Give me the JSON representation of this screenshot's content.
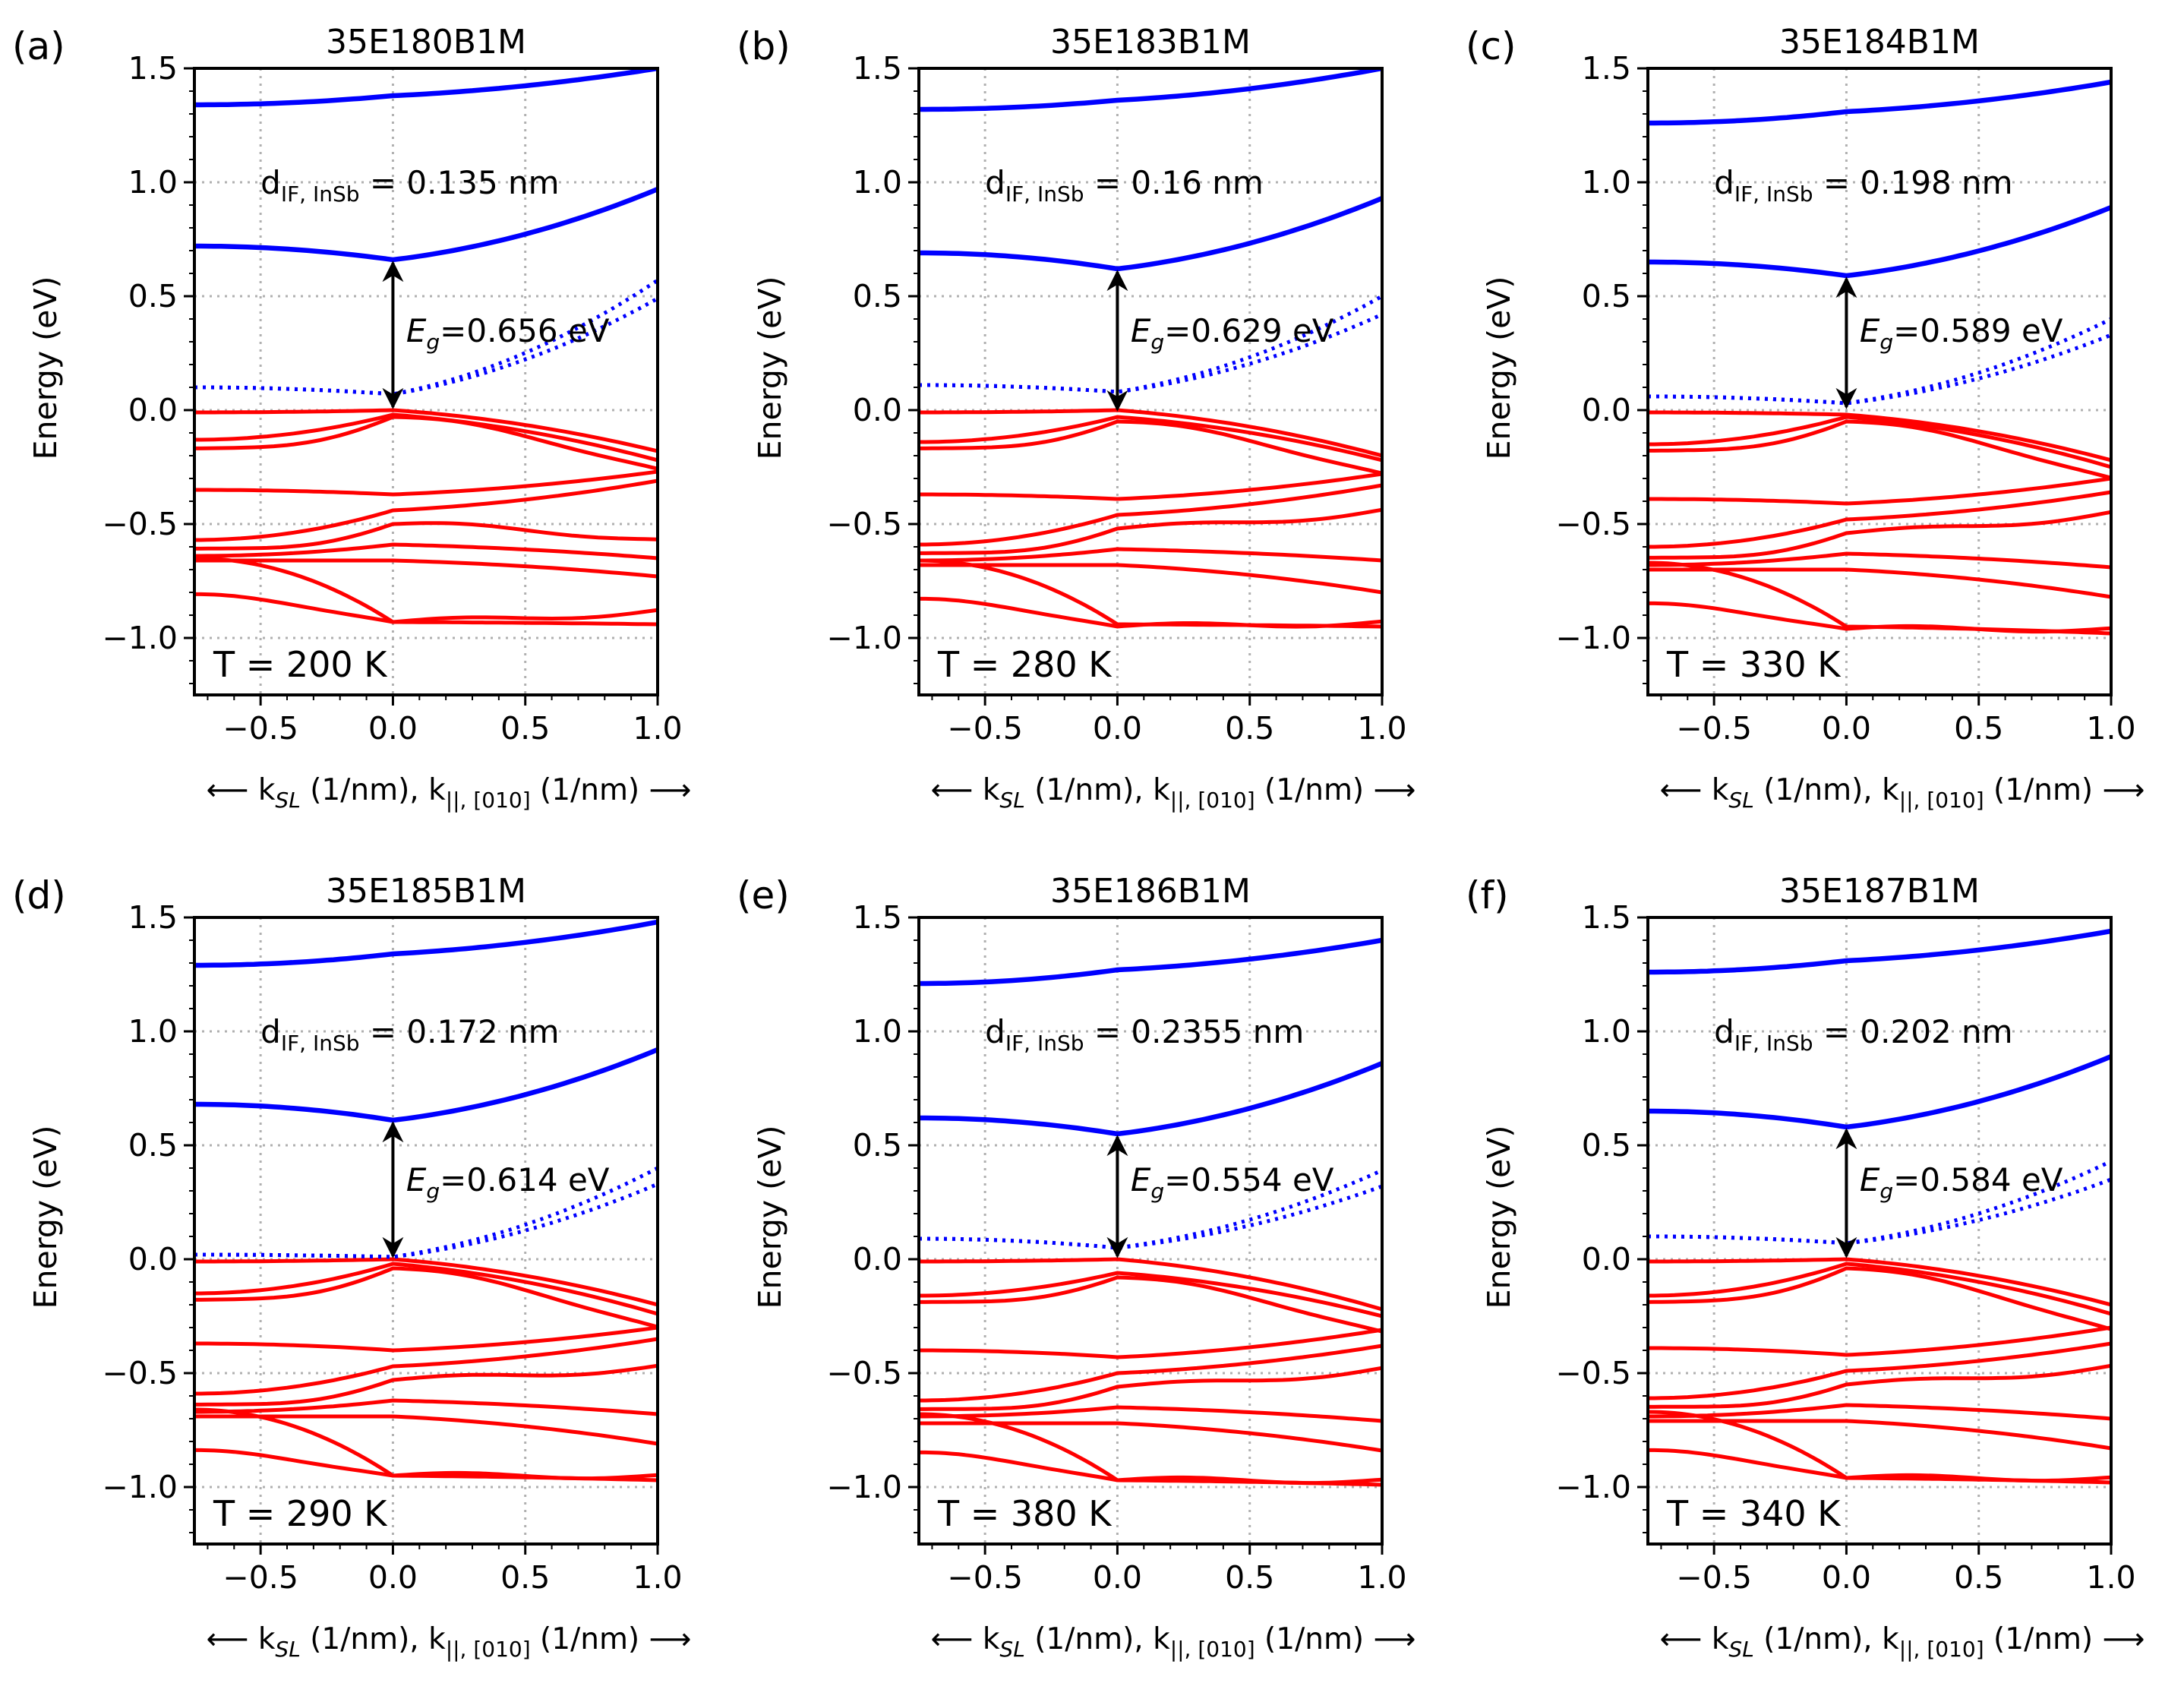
{
  "figure": {
    "y_axis_label": "Energy (eV)",
    "x_axis_label": {
      "left_arrow": "⟵",
      "k_sl": "k",
      "k_sl_sub": "SL",
      "k_sl_unit": " (1/nm), ",
      "k_par": "k",
      "k_par_sub": "||, [010]",
      "k_par_unit": " (1/nm) ",
      "right_arrow": "⟶"
    },
    "colors": {
      "conduction": "#0000ff",
      "valence": "#ff0000",
      "grid": "#b0b0b0",
      "arrow": "#000000"
    }
  },
  "chart_data": [
    {
      "letter": "(a)",
      "type": "line",
      "title": "35E180B1M",
      "d_prefix": "d",
      "d_sub": "IF, InSb",
      "d_value": " = 0.135 nm",
      "eg_sym": "E",
      "eg_sub": "g",
      "eg_value": "=0.656 eV",
      "eg": 0.656,
      "cbm": 0.66,
      "vbm": 0.0,
      "temperature": "T = 200 K",
      "xlim": [
        -0.75,
        1.0
      ],
      "ylim": [
        -1.25,
        1.5
      ],
      "xticks": [
        -0.5,
        0.0,
        0.5,
        1.0
      ],
      "xtick_labels": [
        "−0.5",
        "0.0",
        "0.5",
        "1.0"
      ],
      "yticks": [
        -1.0,
        -0.5,
        0.0,
        0.5,
        1.0,
        1.5
      ],
      "ytick_labels": [
        "−1.0",
        "−0.5",
        "0.0",
        "0.5",
        "1.0",
        "1.5"
      ],
      "cb1": [
        0.72,
        0.66,
        0.97
      ],
      "cb2": [
        1.34,
        1.38,
        1.5
      ],
      "dotted": [
        0.1,
        0.07,
        0.57,
        0.49
      ],
      "vb": [
        [
          -0.01,
          0.0,
          -0.18
        ],
        [
          -0.13,
          -0.02,
          -0.22
        ],
        [
          -0.18,
          -0.03,
          -0.26
        ],
        [
          -0.35,
          -0.37,
          -0.27
        ],
        [
          -0.57,
          -0.44,
          -0.31
        ],
        [
          -0.62,
          -0.5,
          -0.57
        ],
        [
          -0.64,
          -0.59,
          -0.65
        ],
        [
          -0.66,
          -0.66,
          -0.73
        ],
        [
          -0.82,
          -0.93,
          -0.88
        ],
        [
          -0.65,
          -0.93,
          -0.94
        ]
      ]
    },
    {
      "letter": "(b)",
      "type": "line",
      "title": "35E183B1M",
      "d_prefix": "d",
      "d_sub": "IF, InSb",
      "d_value": " = 0.16 nm",
      "eg_sym": "E",
      "eg_sub": "g",
      "eg_value": "=0.629 eV",
      "eg": 0.629,
      "cbm": 0.62,
      "vbm": -0.01,
      "temperature": "T = 280 K",
      "xlim": [
        -0.75,
        1.0
      ],
      "ylim": [
        -1.25,
        1.5
      ],
      "xticks": [
        -0.5,
        0.0,
        0.5,
        1.0
      ],
      "xtick_labels": [
        "−0.5",
        "0.0",
        "0.5",
        "1.0"
      ],
      "yticks": [
        -1.0,
        -0.5,
        0.0,
        0.5,
        1.0,
        1.5
      ],
      "ytick_labels": [
        "−1.0",
        "−0.5",
        "0.0",
        "0.5",
        "1.0",
        "1.5"
      ],
      "cb1": [
        0.69,
        0.62,
        0.93
      ],
      "cb2": [
        1.32,
        1.36,
        1.5
      ],
      "dotted": [
        0.11,
        0.08,
        0.5,
        0.42
      ],
      "vb": [
        [
          -0.01,
          0.0,
          -0.2
        ],
        [
          -0.14,
          -0.03,
          -0.22
        ],
        [
          -0.18,
          -0.05,
          -0.28
        ],
        [
          -0.37,
          -0.39,
          -0.28
        ],
        [
          -0.59,
          -0.46,
          -0.33
        ],
        [
          -0.64,
          -0.52,
          -0.44
        ],
        [
          -0.66,
          -0.61,
          -0.66
        ],
        [
          -0.68,
          -0.68,
          -0.8
        ],
        [
          -0.84,
          -0.95,
          -0.93
        ],
        [
          -0.66,
          -0.94,
          -0.95
        ]
      ]
    },
    {
      "letter": "(c)",
      "type": "line",
      "title": "35E184B1M",
      "d_prefix": "d",
      "d_sub": "IF, InSb",
      "d_value": " = 0.198 nm",
      "eg_sym": "E",
      "eg_sub": "g",
      "eg_value": "=0.589 eV",
      "eg": 0.589,
      "cbm": 0.59,
      "vbm": 0.0,
      "temperature": "T = 330 K",
      "xlim": [
        -0.75,
        1.0
      ],
      "ylim": [
        -1.25,
        1.5
      ],
      "xticks": [
        -0.5,
        0.0,
        0.5,
        1.0
      ],
      "xtick_labels": [
        "−0.5",
        "0.0",
        "0.5",
        "1.0"
      ],
      "yticks": [
        -1.0,
        -0.5,
        0.0,
        0.5,
        1.0,
        1.5
      ],
      "ytick_labels": [
        "−1.0",
        "−0.5",
        "0.0",
        "0.5",
        "1.0",
        "1.5"
      ],
      "cb1": [
        0.65,
        0.59,
        0.89
      ],
      "cb2": [
        1.26,
        1.31,
        1.44
      ],
      "dotted": [
        0.06,
        0.03,
        0.4,
        0.33
      ],
      "vb": [
        [
          -0.01,
          -0.02,
          -0.22
        ],
        [
          -0.15,
          -0.03,
          -0.25
        ],
        [
          -0.19,
          -0.05,
          -0.3
        ],
        [
          -0.39,
          -0.41,
          -0.3
        ],
        [
          -0.6,
          -0.48,
          -0.36
        ],
        [
          -0.66,
          -0.54,
          -0.45
        ],
        [
          -0.68,
          -0.63,
          -0.69
        ],
        [
          -0.7,
          -0.7,
          -0.82
        ],
        [
          -0.86,
          -0.96,
          -0.96
        ],
        [
          -0.67,
          -0.95,
          -0.98
        ]
      ]
    },
    {
      "letter": "(d)",
      "type": "line",
      "title": "35E185B1M",
      "d_prefix": "d",
      "d_sub": "IF, InSb",
      "d_value": " = 0.172 nm",
      "eg_sym": "E",
      "eg_sub": "g",
      "eg_value": "=0.614 eV",
      "eg": 0.614,
      "cbm": 0.61,
      "vbm": 0.0,
      "temperature": "T = 290 K",
      "xlim": [
        -0.75,
        1.0
      ],
      "ylim": [
        -1.25,
        1.5
      ],
      "xticks": [
        -0.5,
        0.0,
        0.5,
        1.0
      ],
      "xtick_labels": [
        "−0.5",
        "0.0",
        "0.5",
        "1.0"
      ],
      "yticks": [
        -1.0,
        -0.5,
        0.0,
        0.5,
        1.0,
        1.5
      ],
      "ytick_labels": [
        "−1.0",
        "−0.5",
        "0.0",
        "0.5",
        "1.0",
        "1.5"
      ],
      "cb1": [
        0.68,
        0.61,
        0.92
      ],
      "cb2": [
        1.29,
        1.34,
        1.48
      ],
      "dotted": [
        0.02,
        0.01,
        0.4,
        0.33
      ],
      "vb": [
        [
          -0.01,
          0.0,
          -0.2
        ],
        [
          -0.15,
          -0.02,
          -0.24
        ],
        [
          -0.19,
          -0.04,
          -0.3
        ],
        [
          -0.37,
          -0.4,
          -0.3
        ],
        [
          -0.59,
          -0.47,
          -0.35
        ],
        [
          -0.65,
          -0.53,
          -0.47
        ],
        [
          -0.67,
          -0.62,
          -0.68
        ],
        [
          -0.69,
          -0.69,
          -0.81
        ],
        [
          -0.85,
          -0.95,
          -0.95
        ],
        [
          -0.66,
          -0.95,
          -0.97
        ]
      ]
    },
    {
      "letter": "(e)",
      "type": "line",
      "title": "35E186B1M",
      "d_prefix": "d",
      "d_sub": "IF, InSb",
      "d_value": " = 0.2355 nm",
      "eg_sym": "E",
      "eg_sub": "g",
      "eg_value": "=0.554 eV",
      "eg": 0.554,
      "cbm": 0.55,
      "vbm": 0.0,
      "temperature": "T = 380 K",
      "xlim": [
        -0.75,
        1.0
      ],
      "ylim": [
        -1.25,
        1.5
      ],
      "xticks": [
        -0.5,
        0.0,
        0.5,
        1.0
      ],
      "xtick_labels": [
        "−0.5",
        "0.0",
        "0.5",
        "1.0"
      ],
      "yticks": [
        -1.0,
        -0.5,
        0.0,
        0.5,
        1.0,
        1.5
      ],
      "ytick_labels": [
        "−1.0",
        "−0.5",
        "0.0",
        "0.5",
        "1.0",
        "1.5"
      ],
      "cb1": [
        0.62,
        0.55,
        0.86
      ],
      "cb2": [
        1.21,
        1.27,
        1.4
      ],
      "dotted": [
        0.09,
        0.05,
        0.39,
        0.32
      ],
      "vb": [
        [
          -0.01,
          0.0,
          -0.22
        ],
        [
          -0.16,
          -0.06,
          -0.25
        ],
        [
          -0.2,
          -0.08,
          -0.32
        ],
        [
          -0.4,
          -0.43,
          -0.31
        ],
        [
          -0.62,
          -0.5,
          -0.38
        ],
        [
          -0.67,
          -0.56,
          -0.48
        ],
        [
          -0.69,
          -0.65,
          -0.71
        ],
        [
          -0.72,
          -0.72,
          -0.84
        ],
        [
          -0.86,
          -0.97,
          -0.97
        ],
        [
          -0.68,
          -0.97,
          -0.99
        ]
      ]
    },
    {
      "letter": "(f)",
      "type": "line",
      "title": "35E187B1M",
      "d_prefix": "d",
      "d_sub": "IF, InSb",
      "d_value": " = 0.202 nm",
      "eg_sym": "E",
      "eg_sub": "g",
      "eg_value": "=0.584 eV",
      "eg": 0.584,
      "cbm": 0.58,
      "vbm": 0.0,
      "temperature": "T = 340 K",
      "xlim": [
        -0.75,
        1.0
      ],
      "ylim": [
        -1.25,
        1.5
      ],
      "xticks": [
        -0.5,
        0.0,
        0.5,
        1.0
      ],
      "xtick_labels": [
        "−0.5",
        "0.0",
        "0.5",
        "1.0"
      ],
      "yticks": [
        -1.0,
        -0.5,
        0.0,
        0.5,
        1.0,
        1.5
      ],
      "ytick_labels": [
        "−1.0",
        "−0.5",
        "0.0",
        "0.5",
        "1.0",
        "1.5"
      ],
      "cb1": [
        0.65,
        0.58,
        0.89
      ],
      "cb2": [
        1.26,
        1.31,
        1.44
      ],
      "dotted": [
        0.1,
        0.07,
        0.43,
        0.35
      ],
      "vb": [
        [
          -0.01,
          0.0,
          -0.2
        ],
        [
          -0.16,
          -0.02,
          -0.24
        ],
        [
          -0.2,
          -0.04,
          -0.31
        ],
        [
          -0.39,
          -0.42,
          -0.3
        ],
        [
          -0.61,
          -0.49,
          -0.37
        ],
        [
          -0.66,
          -0.55,
          -0.47
        ],
        [
          -0.69,
          -0.64,
          -0.7
        ],
        [
          -0.71,
          -0.71,
          -0.83
        ],
        [
          -0.85,
          -0.96,
          -0.96
        ],
        [
          -0.67,
          -0.96,
          -0.98
        ]
      ]
    }
  ]
}
